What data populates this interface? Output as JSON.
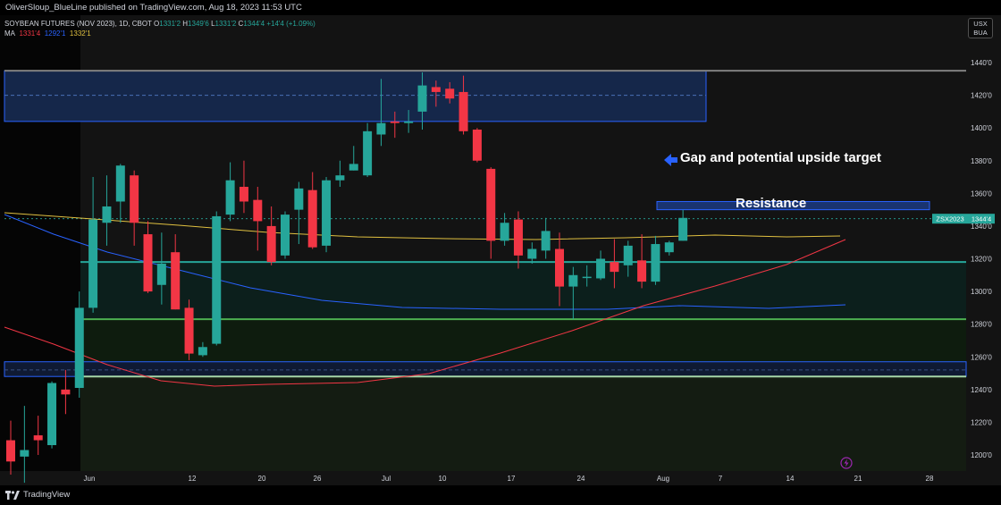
{
  "header": {
    "published_text": "OliverSloup_BlueLine published on TradingView.com, Aug 18, 2023 11:53 UTC"
  },
  "legend": {
    "symbol_line": "SOYBEAN FUTURES (NOV 2023), 1D, CBOT",
    "o_label": "O",
    "o_value": "1331'2",
    "h_label": "H",
    "h_value": "1349'6",
    "l_label": "L",
    "l_value": "1331'2",
    "c_label": "C",
    "c_value": "1344'4",
    "change": "+14'4 (+1.09%)",
    "ma_label": "MA",
    "ma_values": [
      "1331'4",
      "1292'1",
      "1332'1"
    ]
  },
  "currency_box": {
    "line1": "USX",
    "line2": "BUA"
  },
  "annotations": {
    "gap": "Gap and potential upside target",
    "resistance": "Resistance"
  },
  "icons": {
    "arrow": "blue-left-arrow-icon",
    "lightning": "lightning-icon",
    "brand": "tradingview-logo-icon"
  },
  "footer": {
    "brand": "TradingView"
  },
  "colors": {
    "up": "#26a69a",
    "down": "#f23645",
    "ma_short": "#f23645",
    "ma_mid": "#2962ff",
    "ma_long": "#e0c040",
    "zone_line": "#2962ff",
    "support_green": "#4caf50",
    "support_teal": "#26a69a"
  },
  "chart_data": {
    "type": "candlestick",
    "title": "SOYBEAN FUTURES (NOV 2023), 1D, CBOT",
    "y_ticks": [
      "1440'0",
      "1420'0",
      "1400'0",
      "1380'0",
      "1360'0",
      "1340'0",
      "1320'0",
      "1300'0",
      "1280'0",
      "1260'0",
      "1240'0",
      "1220'0",
      "1200'0"
    ],
    "x_ticks": [
      "Jun",
      "12",
      "20",
      "26",
      "Jul",
      "10",
      "17",
      "24",
      "Aug",
      "7",
      "14",
      "21",
      "28"
    ],
    "last_price_tag": {
      "symbol": "ZSX2023",
      "price": "1344'4",
      "value": 1344.5
    },
    "ylim": [
      1194,
      1446
    ],
    "candles": [
      {
        "o": 1209,
        "h": 1221,
        "l": 1188,
        "c": 1196
      },
      {
        "o": 1199,
        "h": 1230,
        "l": 1183,
        "c": 1203
      },
      {
        "o": 1212,
        "h": 1224,
        "l": 1200,
        "c": 1209
      },
      {
        "o": 1206,
        "h": 1245,
        "l": 1204,
        "c": 1244
      },
      {
        "o": 1240,
        "h": 1252,
        "l": 1225,
        "c": 1237
      },
      {
        "o": 1241,
        "h": 1300,
        "l": 1235,
        "c": 1290
      },
      {
        "o": 1290,
        "h": 1370,
        "l": 1287,
        "c": 1344
      },
      {
        "o": 1342,
        "h": 1371,
        "l": 1328,
        "c": 1352
      },
      {
        "o": 1355,
        "h": 1378,
        "l": 1342,
        "c": 1377
      },
      {
        "o": 1371,
        "h": 1374,
        "l": 1328,
        "c": 1342
      },
      {
        "o": 1335,
        "h": 1343,
        "l": 1299,
        "c": 1300
      },
      {
        "o": 1304,
        "h": 1336,
        "l": 1292,
        "c": 1317
      },
      {
        "o": 1324,
        "h": 1335,
        "l": 1289,
        "c": 1289
      },
      {
        "o": 1290,
        "h": 1295,
        "l": 1258,
        "c": 1262
      },
      {
        "o": 1261,
        "h": 1269,
        "l": 1260,
        "c": 1266
      },
      {
        "o": 1268,
        "h": 1349,
        "l": 1267,
        "c": 1346
      },
      {
        "o": 1347,
        "h": 1379,
        "l": 1343,
        "c": 1368
      },
      {
        "o": 1364,
        "h": 1380,
        "l": 1348,
        "c": 1355
      },
      {
        "o": 1356,
        "h": 1364,
        "l": 1325,
        "c": 1343
      },
      {
        "o": 1340,
        "h": 1352,
        "l": 1316,
        "c": 1318
      },
      {
        "o": 1322,
        "h": 1349,
        "l": 1320,
        "c": 1347
      },
      {
        "o": 1350,
        "h": 1367,
        "l": 1329,
        "c": 1363
      },
      {
        "o": 1362,
        "h": 1373,
        "l": 1326,
        "c": 1327
      },
      {
        "o": 1328,
        "h": 1370,
        "l": 1324,
        "c": 1368
      },
      {
        "o": 1368,
        "h": 1380,
        "l": 1364,
        "c": 1371
      },
      {
        "o": 1374,
        "h": 1389,
        "l": 1374,
        "c": 1378
      },
      {
        "o": 1371,
        "h": 1403,
        "l": 1370,
        "c": 1398
      },
      {
        "o": 1396,
        "h": 1430,
        "l": 1389,
        "c": 1403
      },
      {
        "o": 1404,
        "h": 1410,
        "l": 1394,
        "c": 1403
      },
      {
        "o": 1403,
        "h": 1411,
        "l": 1397,
        "c": 1404
      },
      {
        "o": 1410,
        "h": 1434,
        "l": 1399,
        "c": 1426
      },
      {
        "o": 1425,
        "h": 1429,
        "l": 1413,
        "c": 1422
      },
      {
        "o": 1424,
        "h": 1428,
        "l": 1415,
        "c": 1418
      },
      {
        "o": 1422,
        "h": 1432,
        "l": 1396,
        "c": 1398
      },
      {
        "o": 1399,
        "h": 1400,
        "l": 1379,
        "c": 1380
      },
      {
        "o": 1375,
        "h": 1376,
        "l": 1320,
        "c": 1331
      },
      {
        "o": 1331,
        "h": 1348,
        "l": 1328,
        "c": 1342
      },
      {
        "o": 1344,
        "h": 1349,
        "l": 1314,
        "c": 1322
      },
      {
        "o": 1320,
        "h": 1330,
        "l": 1317,
        "c": 1326
      },
      {
        "o": 1325,
        "h": 1345,
        "l": 1320,
        "c": 1337
      },
      {
        "o": 1326,
        "h": 1336,
        "l": 1291,
        "c": 1303
      },
      {
        "o": 1303,
        "h": 1315,
        "l": 1283,
        "c": 1310
      },
      {
        "o": 1309,
        "h": 1316,
        "l": 1303,
        "c": 1309
      },
      {
        "o": 1308,
        "h": 1325,
        "l": 1307,
        "c": 1320
      },
      {
        "o": 1318,
        "h": 1332,
        "l": 1302,
        "c": 1312
      },
      {
        "o": 1316,
        "h": 1331,
        "l": 1309,
        "c": 1328
      },
      {
        "o": 1319,
        "h": 1335,
        "l": 1302,
        "c": 1306
      },
      {
        "o": 1306,
        "h": 1334,
        "l": 1304,
        "c": 1329
      },
      {
        "o": 1324,
        "h": 1331,
        "l": 1322,
        "c": 1330
      },
      {
        "o": 1331,
        "h": 1350,
        "l": 1331,
        "c": 1345
      }
    ],
    "moving_averages": [
      {
        "name": "MA short",
        "value": "1331'4"
      },
      {
        "name": "MA mid",
        "value": "1292'1"
      },
      {
        "name": "MA long",
        "value": "1332'1"
      }
    ],
    "zones": [
      {
        "name": "upper gap zone",
        "top": 1435,
        "bottom": 1404
      },
      {
        "name": "resistance zone",
        "top": 1355,
        "bottom": 1350
      },
      {
        "name": "lower blue zone",
        "top": 1257,
        "bottom": 1248
      },
      {
        "name": "teal support line",
        "value": 1318
      },
      {
        "name": "green support line",
        "value": 1283
      },
      {
        "name": "light green support line",
        "value": 1248
      }
    ],
    "grid": false,
    "y_axis_position": "right"
  }
}
